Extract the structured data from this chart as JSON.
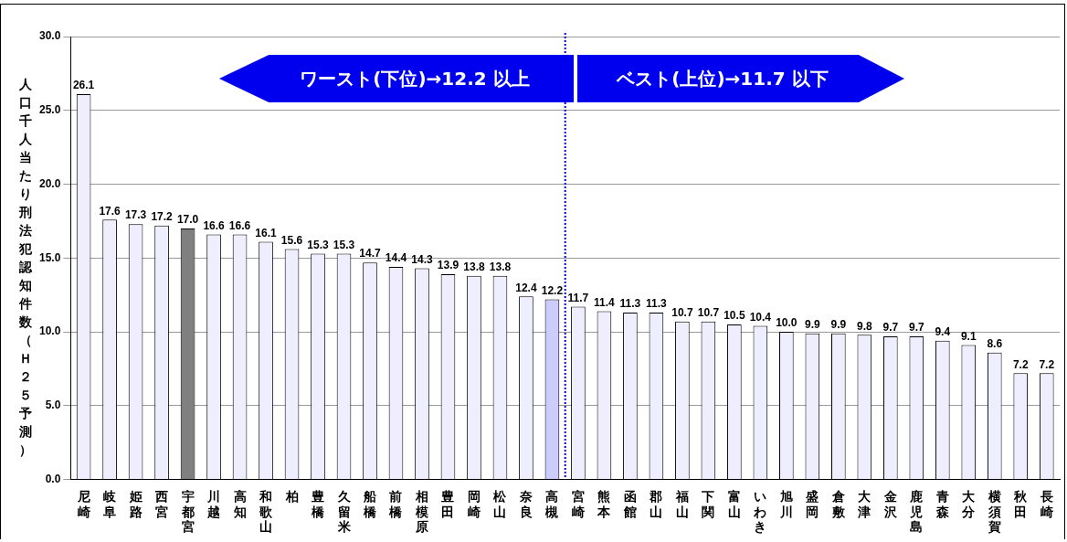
{
  "chart_data": {
    "type": "bar",
    "ylabel": "人口千人当たり刑法犯認知件数（Ｈ２５予測）",
    "categories": [
      "尼崎",
      "岐阜",
      "姫路",
      "西宮",
      "宇都宮",
      "川越",
      "高知",
      "和歌山",
      "柏",
      "豊橋",
      "久留米",
      "船橋",
      "前橋",
      "相模原",
      "豊田",
      "岡崎",
      "松山",
      "奈良",
      "高槻",
      "宮崎",
      "熊本",
      "函館",
      "郡山",
      "福山",
      "下関",
      "富山",
      "いわき",
      "旭川",
      "盛岡",
      "倉敷",
      "大津",
      "金沢",
      "鹿児島",
      "青森",
      "大分",
      "横須賀",
      "秋田",
      "長崎"
    ],
    "values": [
      26.1,
      17.6,
      17.3,
      17.2,
      17.0,
      16.6,
      16.6,
      16.1,
      15.6,
      15.3,
      15.3,
      14.7,
      14.4,
      14.3,
      13.9,
      13.8,
      13.8,
      12.4,
      12.2,
      11.7,
      11.4,
      11.3,
      11.3,
      10.7,
      10.7,
      10.5,
      10.4,
      10.0,
      9.9,
      9.9,
      9.8,
      9.7,
      9.7,
      9.4,
      9.1,
      8.6,
      7.2,
      7.2
    ],
    "colors": [
      "#eeeeff",
      "#eeeeff",
      "#eeeeff",
      "#eeeeff",
      "#808080",
      "#eeeeff",
      "#eeeeff",
      "#eeeeff",
      "#eeeeff",
      "#eeeeff",
      "#eeeeff",
      "#eeeeff",
      "#eeeeff",
      "#eeeeff",
      "#eeeeff",
      "#eeeeff",
      "#eeeeff",
      "#eeeeff",
      "#ccccff",
      "#eeeeff",
      "#eeeeff",
      "#eeeeff",
      "#eeeeff",
      "#eeeeff",
      "#eeeeff",
      "#eeeeff",
      "#eeeeff",
      "#eeeeff",
      "#eeeeff",
      "#eeeeff",
      "#eeeeff",
      "#eeeeff",
      "#eeeeff",
      "#eeeeff",
      "#eeeeff",
      "#eeeeff",
      "#eeeeff",
      "#eeeeff"
    ],
    "ylim": [
      0,
      30
    ],
    "yticks": [
      {
        "value": 0,
        "label": "0.0"
      },
      {
        "value": 5,
        "label": "5.0"
      },
      {
        "value": 10,
        "label": "10.0"
      },
      {
        "value": 15,
        "label": "15.0"
      },
      {
        "value": 20,
        "label": "20.0"
      },
      {
        "value": 25,
        "label": "25.0"
      },
      {
        "value": 30,
        "label": "30.0"
      }
    ],
    "grid": "y",
    "legend": false,
    "data_labels": true,
    "value_labels": [
      "26.1",
      "17.6",
      "17.3",
      "17.2",
      "17.0",
      "16.6",
      "16.6",
      "16.1",
      "15.6",
      "15.3",
      "15.3",
      "14.7",
      "14.4",
      "14.3",
      "13.9",
      "13.8",
      "13.8",
      "12.4",
      "12.2",
      "11.7",
      "11.4",
      "11.3",
      "11.3",
      "10.7",
      "10.7",
      "10.5",
      "10.4",
      "10.0",
      "9.9",
      "9.9",
      "9.8",
      "9.7",
      "9.7",
      "9.4",
      "9.1",
      "8.6",
      "7.2",
      "7.2"
    ],
    "ref_lines": [
      {
        "axis": "x",
        "value": "宮崎",
        "color": "#0000cc",
        "line_style": "dotted"
      }
    ],
    "annotations": [
      "ワースト(下位)→12.2 以上",
      "ベスト(上位)→11.7 以下"
    ]
  }
}
